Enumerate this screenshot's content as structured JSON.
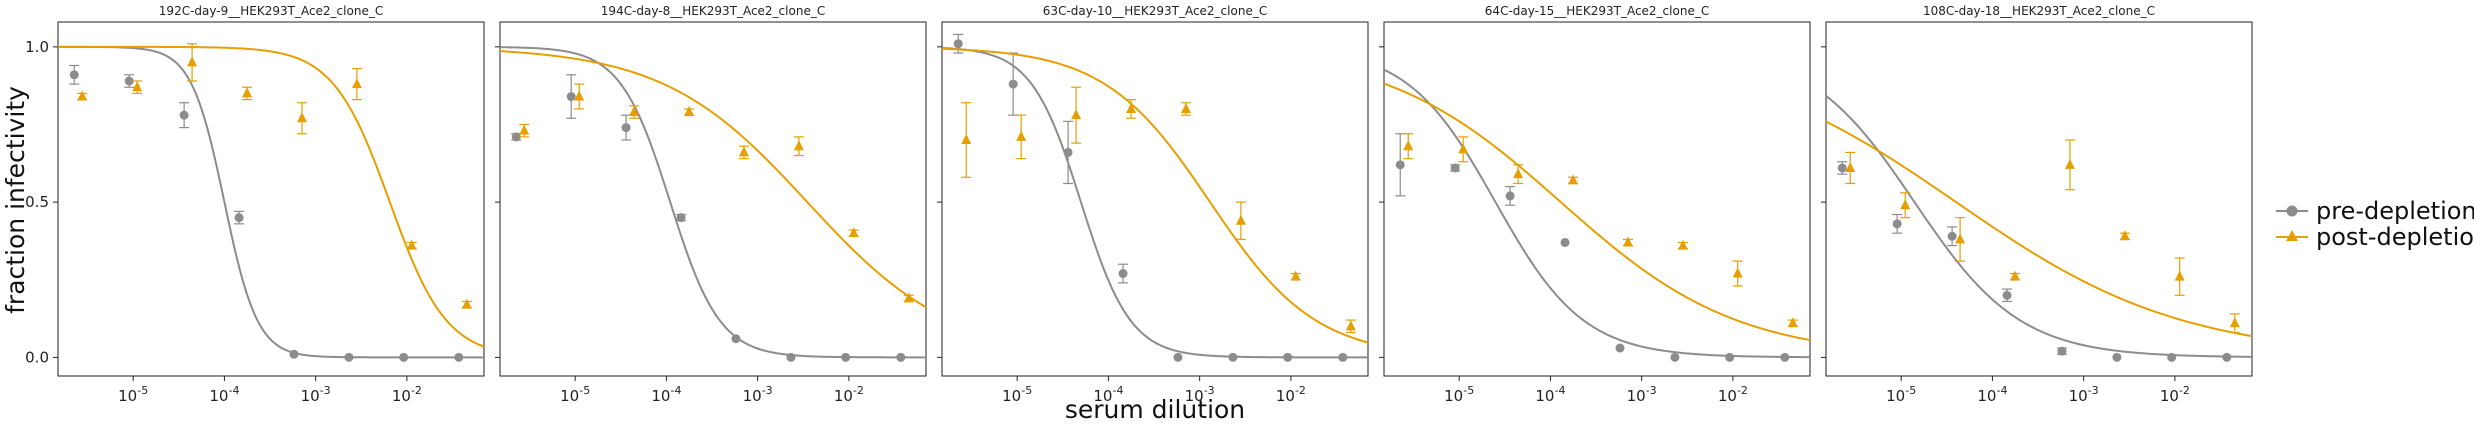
{
  "chart_data": {
    "type": "scatter",
    "xlabel": "serum dilution",
    "ylabel": "fraction infectivity",
    "x_scale": "log",
    "xlim": [
      1.5e-06,
      0.07
    ],
    "ylim": [
      -0.06,
      1.08
    ],
    "y_ticks": [
      0.0,
      0.5,
      1.0
    ],
    "y_tick_labels": [
      "0.0",
      "0.5",
      "1.0"
    ],
    "x_ticks": [
      1e-05,
      0.0001,
      0.001,
      0.01
    ],
    "x_tick_labels": [
      "10^-5",
      "10^-4",
      "10^-3",
      "10^-2"
    ],
    "grid": false,
    "legend": {
      "placement": "right",
      "entries": [
        {
          "label": "pre-depletion",
          "color": "#8c8c8c",
          "marker": "circle"
        },
        {
          "label": "post-depletion",
          "color": "#e69f00",
          "marker": "triangle"
        }
      ]
    },
    "dilutions": [
      2.5e-06,
      1e-05,
      4e-05,
      0.00016,
      0.00064,
      0.00256,
      0.0102,
      0.041
    ],
    "panels": [
      {
        "title": "192C-day-9__HEK293T_Ace2_clone_C",
        "series": [
          {
            "name": "pre-depletion",
            "values": [
              0.91,
              0.89,
              0.78,
              0.45,
              0.01,
              0.0,
              0.0,
              0.0
            ],
            "err": [
              0.03,
              0.02,
              0.04,
              0.02,
              0.0,
              0.0,
              0.0,
              0.0
            ],
            "ic50": 0.0001,
            "hill": 2.4
          },
          {
            "name": "post-depletion",
            "values": [
              0.84,
              0.87,
              0.95,
              0.85,
              0.77,
              0.88,
              0.36,
              0.17
            ],
            "err": [
              0.01,
              0.02,
              0.06,
              0.02,
              0.05,
              0.05,
              0.01,
              0.01
            ],
            "ic50": 0.0065,
            "hill": 1.4
          }
        ]
      },
      {
        "title": "194C-day-8__HEK293T_Ace2_clone_C",
        "series": [
          {
            "name": "pre-depletion",
            "values": [
              0.71,
              0.84,
              0.74,
              0.45,
              0.06,
              0.0,
              0.0,
              0.0
            ],
            "err": [
              0.01,
              0.07,
              0.04,
              0.01,
              0.0,
              0.0,
              0.0,
              0.0
            ],
            "ic50": 0.00011,
            "hill": 1.6
          },
          {
            "name": "post-depletion",
            "values": [
              0.73,
              0.84,
              0.79,
              0.79,
              0.66,
              0.68,
              0.4,
              0.19
            ],
            "err": [
              0.02,
              0.04,
              0.02,
              0.01,
              0.02,
              0.03,
              0.01,
              0.01
            ],
            "ic50": 0.0035,
            "hill": 0.55
          }
        ]
      },
      {
        "title": "63C-day-10__HEK293T_Ace2_clone_C",
        "series": [
          {
            "name": "pre-depletion",
            "values": [
              1.01,
              0.88,
              0.66,
              0.27,
              0.0,
              0.0,
              0.0,
              0.0
            ],
            "err": [
              0.03,
              0.1,
              0.1,
              0.03,
              0.0,
              0.0,
              0.0,
              0.0
            ],
            "ic50": 5e-05,
            "hill": 1.6
          },
          {
            "name": "post-depletion",
            "values": [
              0.7,
              0.71,
              0.78,
              0.8,
              0.8,
              0.44,
              0.26,
              0.1
            ],
            "err": [
              0.12,
              0.07,
              0.09,
              0.03,
              0.02,
              0.06,
              0.01,
              0.02
            ],
            "ic50": 0.0013,
            "hill": 0.75
          }
        ]
      },
      {
        "title": "64C-day-15__HEK293T_Ace2_clone_C",
        "series": [
          {
            "name": "pre-depletion",
            "values": [
              0.62,
              0.61,
              0.52,
              0.37,
              0.03,
              0.0,
              0.0,
              0.0
            ],
            "err": [
              0.1,
              0.01,
              0.03,
              0.0,
              0.0,
              0.0,
              0.0,
              0.0
            ],
            "ic50": 2.5e-05,
            "hill": 0.9
          },
          {
            "name": "post-depletion",
            "values": [
              0.68,
              0.67,
              0.59,
              0.57,
              0.37,
              0.36,
              0.27,
              0.11
            ],
            "err": [
              0.04,
              0.04,
              0.03,
              0.01,
              0.01,
              0.01,
              0.04,
              0.01
            ],
            "ic50": 0.00013,
            "hill": 0.45
          }
        ]
      },
      {
        "title": "108C-day-18__HEK293T_Ace2_clone_C",
        "series": [
          {
            "name": "pre-depletion",
            "values": [
              0.61,
              0.43,
              0.39,
              0.2,
              0.02,
              0.0,
              0.0,
              0.0
            ],
            "err": [
              0.02,
              0.03,
              0.03,
              0.02,
              0.01,
              0.0,
              0.0,
              0.0
            ],
            "ic50": 1.4e-05,
            "hill": 0.75
          },
          {
            "name": "post-depletion",
            "values": [
              0.61,
              0.49,
              0.38,
              0.26,
              0.62,
              0.39,
              0.26,
              0.11
            ],
            "err": [
              0.05,
              0.04,
              0.07,
              0.01,
              0.08,
              0.01,
              0.06,
              0.03
            ],
            "ic50": 4e-05,
            "hill": 0.35
          }
        ]
      }
    ]
  }
}
